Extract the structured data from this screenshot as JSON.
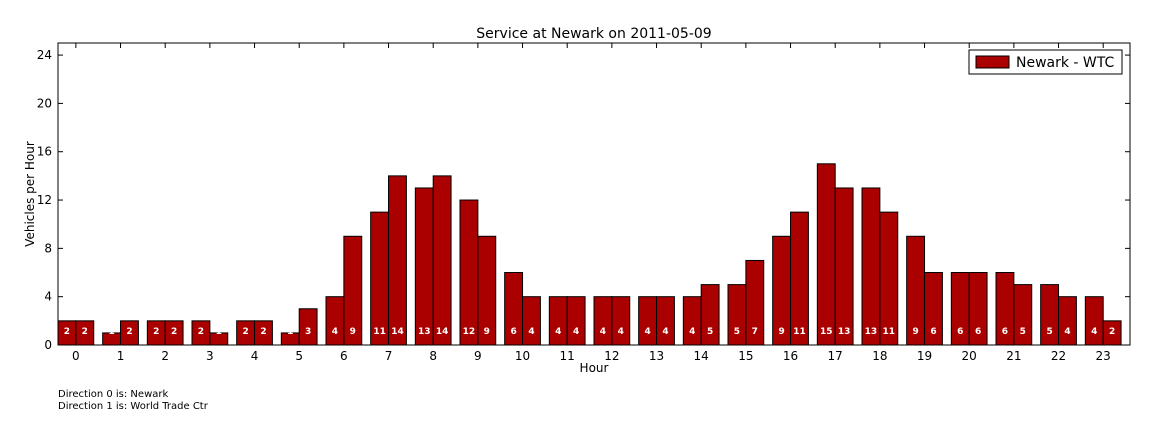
{
  "chart_data": {
    "type": "bar",
    "title": "Service at Newark on 2011-05-09",
    "xlabel": "Hour",
    "ylabel": "Vehicles per Hour",
    "ylim": [
      0,
      25
    ],
    "yticks": [
      0,
      4,
      8,
      12,
      16,
      20,
      24
    ],
    "categories": [
      "0",
      "1",
      "2",
      "3",
      "4",
      "5",
      "6",
      "7",
      "8",
      "9",
      "10",
      "11",
      "12",
      "13",
      "14",
      "15",
      "16",
      "17",
      "18",
      "19",
      "20",
      "21",
      "22",
      "23"
    ],
    "series": [
      {
        "name": "Newark - WTC",
        "direction": 0,
        "values": [
          2,
          1,
          2,
          2,
          2,
          1,
          4,
          11,
          13,
          12,
          6,
          4,
          4,
          4,
          4,
          5,
          9,
          15,
          13,
          9,
          6,
          6,
          5,
          4
        ]
      },
      {
        "direction": 1,
        "values": [
          2,
          2,
          2,
          1,
          2,
          3,
          9,
          14,
          14,
          9,
          4,
          4,
          4,
          4,
          5,
          7,
          11,
          13,
          11,
          6,
          6,
          5,
          4,
          2
        ]
      }
    ],
    "bar_color": "#aa0000",
    "bar_edge_color": "#000000",
    "label_color": "#ffffff",
    "legend_position": "top-right",
    "grid": false
  },
  "footnotes": [
    "Direction 0 is: Newark",
    "Direction 1 is: World Trade Ctr"
  ]
}
